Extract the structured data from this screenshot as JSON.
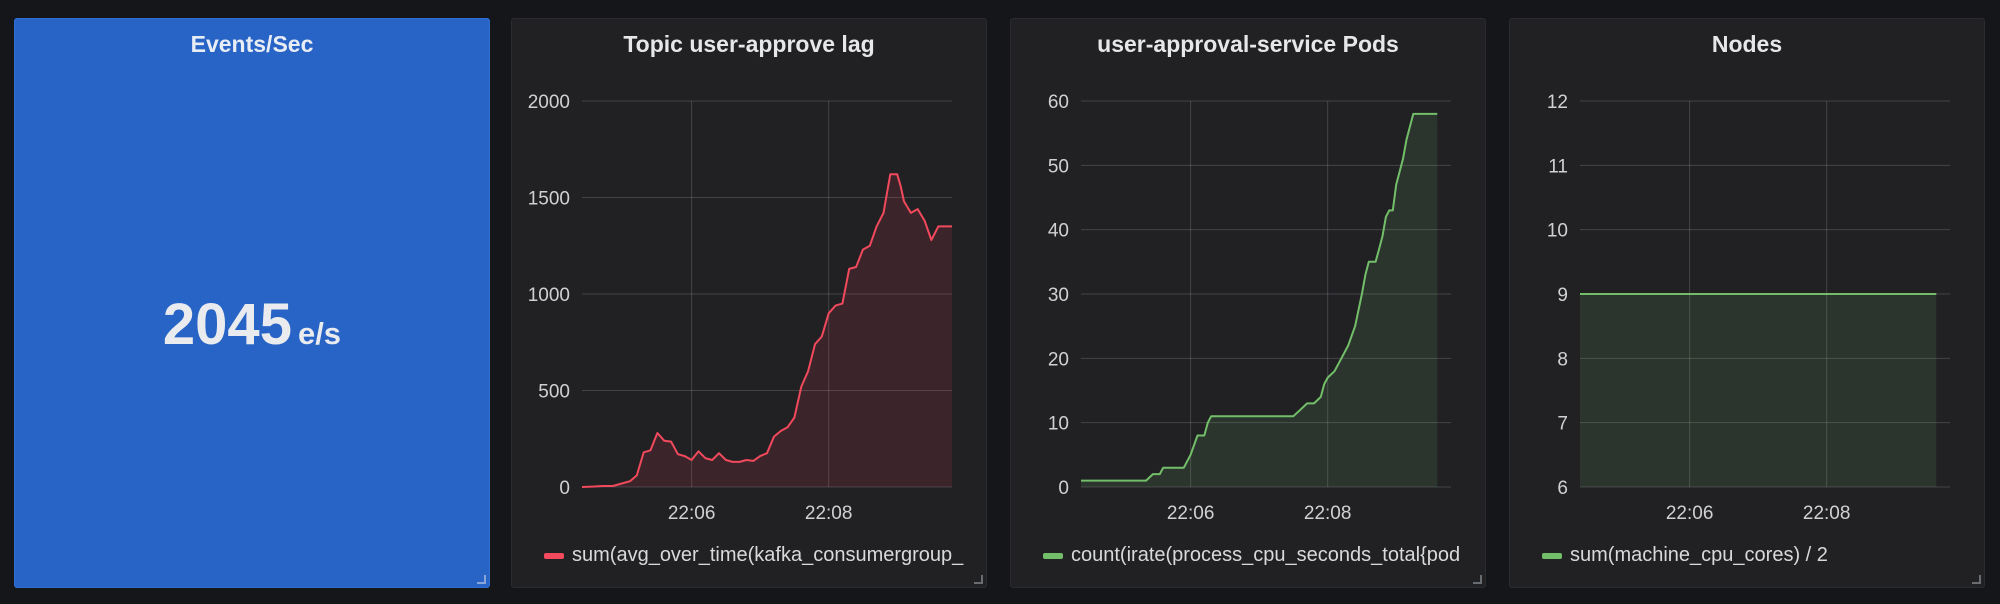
{
  "stat": {
    "title": "Events/Sec",
    "value": "2045",
    "unit": "e/s",
    "background": "#2764c5"
  },
  "chart_data": [
    {
      "type": "area",
      "title": "Topic user-approve lag",
      "x_ticks": [
        "22:06",
        "22:08"
      ],
      "x_tick_minutes": [
        6,
        8
      ],
      "xlim": [
        4.4,
        9.8
      ],
      "y_ticks": [
        "0",
        "500",
        "1000",
        "1500",
        "2000"
      ],
      "ylim": [
        0,
        2000
      ],
      "grid": true,
      "legend_placement": "bottom-left",
      "series": [
        {
          "name": "sum(avg_over_time(kafka_consumergroup_l",
          "color": "#f2495c",
          "x": [
            4.4,
            4.55,
            4.7,
            4.85,
            5.0,
            5.1,
            5.2,
            5.3,
            5.4,
            5.5,
            5.6,
            5.7,
            5.8,
            5.9,
            6.0,
            6.1,
            6.2,
            6.3,
            6.4,
            6.5,
            6.6,
            6.7,
            6.8,
            6.9,
            7.0,
            7.1,
            7.2,
            7.3,
            7.4,
            7.5,
            7.6,
            7.7,
            7.8,
            7.9,
            8.0,
            8.1,
            8.2,
            8.3,
            8.4,
            8.5,
            8.6,
            8.7,
            8.8,
            8.9,
            9.0,
            9.05,
            9.1,
            9.2,
            9.3,
            9.4,
            9.5,
            9.6,
            9.7,
            9.8
          ],
          "y": [
            0,
            2,
            5,
            5,
            20,
            30,
            60,
            180,
            190,
            280,
            240,
            235,
            170,
            160,
            140,
            185,
            150,
            140,
            175,
            140,
            130,
            130,
            140,
            135,
            160,
            175,
            260,
            290,
            310,
            360,
            520,
            600,
            740,
            780,
            900,
            940,
            950,
            1130,
            1140,
            1230,
            1250,
            1350,
            1420,
            1620,
            1620,
            1560,
            1480,
            1420,
            1440,
            1380,
            1280,
            1350,
            1350,
            1350
          ]
        }
      ]
    },
    {
      "type": "area",
      "title": "user-approval-service Pods",
      "x_ticks": [
        "22:06",
        "22:08"
      ],
      "x_tick_minutes": [
        6,
        8
      ],
      "xlim": [
        4.4,
        9.8
      ],
      "y_ticks": [
        "0",
        "10",
        "20",
        "30",
        "40",
        "50",
        "60"
      ],
      "ylim": [
        0,
        60
      ],
      "grid": true,
      "legend_placement": "bottom-left",
      "series": [
        {
          "name": "count(irate(process_cpu_seconds_total{pod",
          "color": "#73bf69",
          "x": [
            4.4,
            5.35,
            5.45,
            5.55,
            5.6,
            5.75,
            5.9,
            6.0,
            6.1,
            6.2,
            6.25,
            6.3,
            6.35,
            6.5,
            7.5,
            7.6,
            7.7,
            7.75,
            7.8,
            7.9,
            7.95,
            8.0,
            8.1,
            8.2,
            8.3,
            8.4,
            8.5,
            8.55,
            8.6,
            8.7,
            8.75,
            8.8,
            8.85,
            8.9,
            8.95,
            9.0,
            9.1,
            9.15,
            9.2,
            9.25,
            9.3,
            9.35,
            9.4,
            9.5,
            9.6
          ],
          "y": [
            1,
            1,
            2,
            2,
            3,
            3,
            3,
            5,
            8,
            8,
            10,
            11,
            11,
            11,
            11,
            12,
            13,
            13,
            13,
            14,
            16,
            17,
            18,
            20,
            22,
            25,
            30,
            33,
            35,
            35,
            37,
            39,
            42,
            43,
            43,
            47,
            51,
            54,
            56,
            58,
            58,
            58,
            58,
            58,
            58
          ]
        }
      ]
    },
    {
      "type": "area",
      "title": "Nodes",
      "x_ticks": [
        "22:06",
        "22:08"
      ],
      "x_tick_minutes": [
        6,
        8
      ],
      "xlim": [
        4.4,
        9.8
      ],
      "y_ticks": [
        "6",
        "7",
        "8",
        "9",
        "10",
        "11",
        "12"
      ],
      "ylim": [
        6,
        12
      ],
      "grid": true,
      "legend_placement": "bottom-left",
      "series": [
        {
          "name": "sum(machine_cpu_cores) / 2",
          "color": "#73bf69",
          "x": [
            4.4,
            9.6
          ],
          "y": [
            9,
            9
          ]
        }
      ]
    }
  ]
}
